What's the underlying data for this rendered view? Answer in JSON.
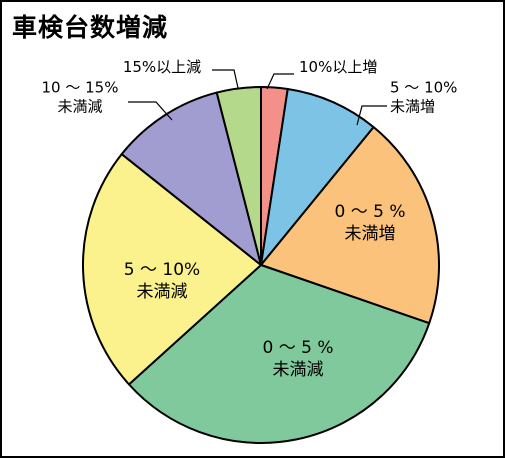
{
  "chart_data": {
    "type": "pie",
    "title": "車検台数増減",
    "start_angle_deg": 0,
    "direction": "clockwise",
    "slices": [
      {
        "label_lines": [
          "10%以上増"
        ],
        "value": 2.4,
        "color": "#F4908A"
      },
      {
        "label_lines": [
          "5 ～ 10%",
          "未満増"
        ],
        "value": 8.5,
        "color": "#7DC3E6"
      },
      {
        "label_lines": [
          "0 ～ 5 %",
          "未満増"
        ],
        "value": 19.4,
        "color": "#FAC27A"
      },
      {
        "label_lines": [
          "0 ～ 5 %",
          "未満減"
        ],
        "value": 33.0,
        "color": "#80C99C"
      },
      {
        "label_lines": [
          "5 ～ 10%",
          "未満減"
        ],
        "value": 22.4,
        "color": "#FBF18D"
      },
      {
        "label_lines": [
          "10 ～ 15%",
          "未満減"
        ],
        "value": 10.3,
        "color": "#A29DD0"
      },
      {
        "label_lines": [
          "15%以上減"
        ],
        "value": 4.0,
        "color": "#B5D98A"
      }
    ]
  }
}
